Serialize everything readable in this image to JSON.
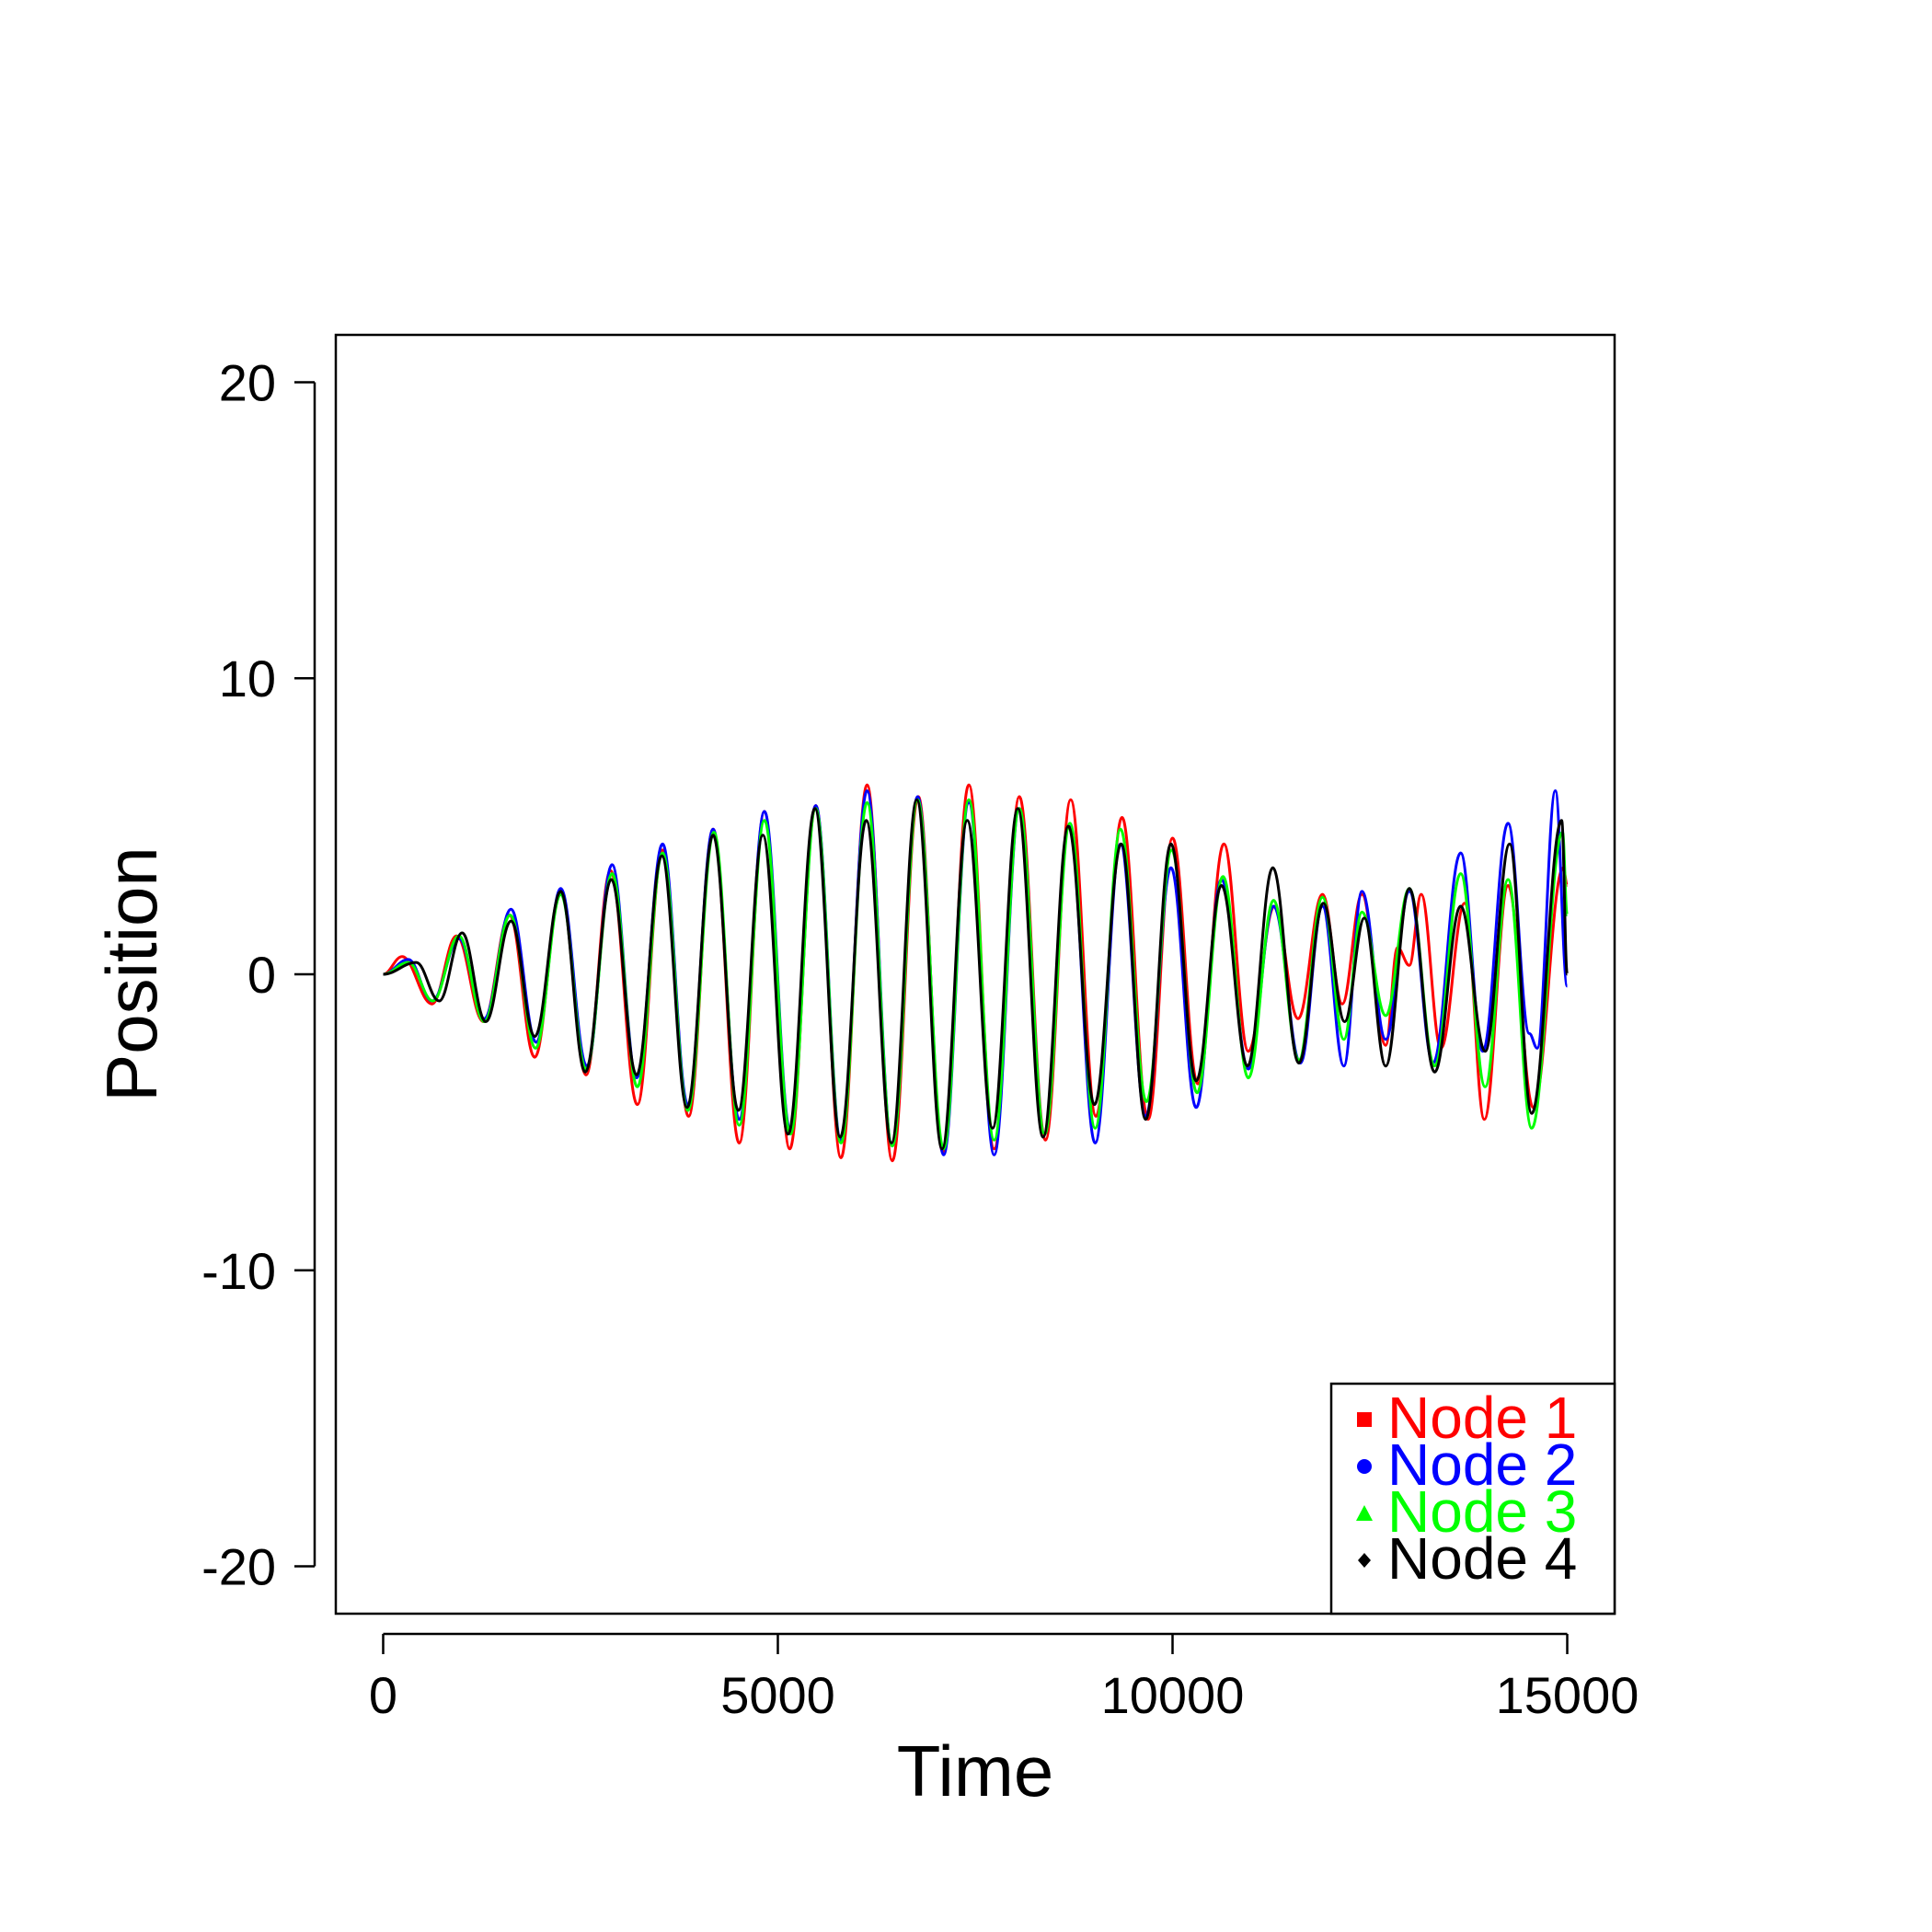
{
  "chart_data": {
    "type": "line",
    "title": "",
    "xlabel": "Time",
    "ylabel": "Position",
    "xlim": [
      -600,
      15600
    ],
    "ylim": [
      -21.6,
      21.6
    ],
    "xticks": [
      0,
      5000,
      10000,
      15000
    ],
    "yticks": [
      -20,
      -10,
      0,
      10,
      20
    ],
    "grid": false,
    "legend_position": "bottom-right",
    "series": [
      {
        "name": "Node 1",
        "color": "#ff0000",
        "marker": "square",
        "points": [
          [
            0,
            0
          ],
          [
            240,
            0.6
          ],
          [
            620,
            -1.0
          ],
          [
            930,
            1.3
          ],
          [
            1270,
            -1.6
          ],
          [
            1600,
            2.0
          ],
          [
            1920,
            -2.8
          ],
          [
            2250,
            2.8
          ],
          [
            2570,
            -3.4
          ],
          [
            2880,
            3.5
          ],
          [
            3220,
            -4.4
          ],
          [
            3540,
            4.2
          ],
          [
            3870,
            -4.8
          ],
          [
            4180,
            4.9
          ],
          [
            4510,
            -5.7
          ],
          [
            4830,
            5.5
          ],
          [
            5150,
            -5.9
          ],
          [
            5480,
            5.7
          ],
          [
            5800,
            -6.2
          ],
          [
            6130,
            6.4
          ],
          [
            6450,
            -6.3
          ],
          [
            6780,
            6.0
          ],
          [
            7090,
            -6.0
          ],
          [
            7420,
            6.4
          ],
          [
            7740,
            -5.9
          ],
          [
            8060,
            6.0
          ],
          [
            8390,
            -5.6
          ],
          [
            8710,
            5.9
          ],
          [
            9030,
            -4.8
          ],
          [
            9360,
            5.3
          ],
          [
            9690,
            -4.9
          ],
          [
            10000,
            4.6
          ],
          [
            10320,
            -3.7
          ],
          [
            10650,
            4.4
          ],
          [
            10960,
            -2.6
          ],
          [
            11290,
            2.3
          ],
          [
            11590,
            -1.5
          ],
          [
            11900,
            2.7
          ],
          [
            12150,
            -1.0
          ],
          [
            12400,
            2.7
          ],
          [
            12700,
            -2.4
          ],
          [
            12850,
            0.9
          ],
          [
            13000,
            0.3
          ],
          [
            13150,
            2.7
          ],
          [
            13400,
            -2.5
          ],
          [
            13700,
            2.4
          ],
          [
            13950,
            -4.9
          ],
          [
            14250,
            3.0
          ],
          [
            14570,
            -4.5
          ],
          [
            14950,
            3.6
          ],
          [
            15000,
            3.0
          ]
        ]
      },
      {
        "name": "Node 2",
        "color": "#0000ff",
        "marker": "circle",
        "points": [
          [
            0,
            0
          ],
          [
            320,
            0.5
          ],
          [
            620,
            -0.9
          ],
          [
            960,
            1.2
          ],
          [
            1280,
            -1.5
          ],
          [
            1620,
            2.2
          ],
          [
            1940,
            -2.3
          ],
          [
            2250,
            2.9
          ],
          [
            2580,
            -3.1
          ],
          [
            2900,
            3.7
          ],
          [
            3210,
            -3.5
          ],
          [
            3540,
            4.4
          ],
          [
            3860,
            -4.4
          ],
          [
            4180,
            4.9
          ],
          [
            4510,
            -4.9
          ],
          [
            4830,
            5.5
          ],
          [
            5160,
            -5.3
          ],
          [
            5480,
            5.7
          ],
          [
            5800,
            -5.6
          ],
          [
            6130,
            6.2
          ],
          [
            6450,
            -5.8
          ],
          [
            6770,
            6.0
          ],
          [
            7100,
            -6.1
          ],
          [
            7420,
            5.8
          ],
          [
            7740,
            -6.1
          ],
          [
            8060,
            5.6
          ],
          [
            8380,
            -5.4
          ],
          [
            8690,
            5.0
          ],
          [
            9020,
            -5.7
          ],
          [
            9340,
            4.4
          ],
          [
            9660,
            -4.8
          ],
          [
            9980,
            3.6
          ],
          [
            10300,
            -4.5
          ],
          [
            10620,
            3.2
          ],
          [
            10960,
            -3.2
          ],
          [
            11280,
            2.3
          ],
          [
            11620,
            -3.0
          ],
          [
            11900,
            2.3
          ],
          [
            12170,
            -3.1
          ],
          [
            12400,
            2.8
          ],
          [
            12700,
            -2.2
          ],
          [
            13000,
            2.8
          ],
          [
            13300,
            -3.0
          ],
          [
            13650,
            4.1
          ],
          [
            13930,
            -2.6
          ],
          [
            14250,
            5.1
          ],
          [
            14520,
            -2.0
          ],
          [
            14620,
            -2.5
          ],
          [
            14850,
            6.2
          ],
          [
            15000,
            -0.4
          ]
        ]
      },
      {
        "name": "Node 3",
        "color": "#00ff00",
        "marker": "triangle",
        "points": [
          [
            0,
            0
          ],
          [
            320,
            0.4
          ],
          [
            630,
            -0.9
          ],
          [
            960,
            1.3
          ],
          [
            1280,
            -1.6
          ],
          [
            1610,
            2.0
          ],
          [
            1930,
            -2.5
          ],
          [
            2250,
            2.7
          ],
          [
            2570,
            -3.2
          ],
          [
            2900,
            3.4
          ],
          [
            3220,
            -3.8
          ],
          [
            3540,
            4.1
          ],
          [
            3860,
            -4.6
          ],
          [
            4190,
            4.8
          ],
          [
            4510,
            -5.1
          ],
          [
            4830,
            5.2
          ],
          [
            5160,
            -5.4
          ],
          [
            5480,
            5.6
          ],
          [
            5800,
            -5.7
          ],
          [
            6130,
            5.8
          ],
          [
            6450,
            -5.8
          ],
          [
            6770,
            5.9
          ],
          [
            7100,
            -5.9
          ],
          [
            7420,
            5.9
          ],
          [
            7740,
            -5.6
          ],
          [
            8060,
            5.6
          ],
          [
            8380,
            -5.4
          ],
          [
            8700,
            5.1
          ],
          [
            9020,
            -5.2
          ],
          [
            9340,
            4.9
          ],
          [
            9670,
            -4.3
          ],
          [
            9990,
            4.2
          ],
          [
            10310,
            -4.0
          ],
          [
            10640,
            3.3
          ],
          [
            10960,
            -3.5
          ],
          [
            11280,
            2.5
          ],
          [
            11600,
            -2.9
          ],
          [
            11900,
            2.6
          ],
          [
            12170,
            -2.2
          ],
          [
            12400,
            2.1
          ],
          [
            12700,
            -1.4
          ],
          [
            13000,
            2.9
          ],
          [
            13320,
            -3.1
          ],
          [
            13650,
            3.4
          ],
          [
            13960,
            -3.8
          ],
          [
            14250,
            3.2
          ],
          [
            14550,
            -5.2
          ],
          [
            14940,
            4.8
          ],
          [
            15000,
            2.0
          ]
        ]
      },
      {
        "name": "Node 4",
        "color": "#000000",
        "marker": "diamond",
        "points": [
          [
            0,
            0
          ],
          [
            420,
            0.4
          ],
          [
            710,
            -0.9
          ],
          [
            1000,
            1.4
          ],
          [
            1300,
            -1.6
          ],
          [
            1620,
            1.8
          ],
          [
            1920,
            -2.1
          ],
          [
            2250,
            2.8
          ],
          [
            2560,
            -3.3
          ],
          [
            2890,
            3.2
          ],
          [
            3210,
            -3.4
          ],
          [
            3530,
            4.0
          ],
          [
            3850,
            -4.5
          ],
          [
            4180,
            4.7
          ],
          [
            4500,
            -4.6
          ],
          [
            4810,
            4.7
          ],
          [
            5130,
            -5.4
          ],
          [
            5470,
            5.6
          ],
          [
            5790,
            -5.5
          ],
          [
            6120,
            5.2
          ],
          [
            6440,
            -5.7
          ],
          [
            6760,
            5.9
          ],
          [
            7080,
            -5.9
          ],
          [
            7400,
            5.2
          ],
          [
            7720,
            -5.2
          ],
          [
            8040,
            5.6
          ],
          [
            8360,
            -5.5
          ],
          [
            8680,
            5.0
          ],
          [
            9010,
            -4.4
          ],
          [
            9350,
            4.4
          ],
          [
            9660,
            -4.9
          ],
          [
            9980,
            4.4
          ],
          [
            10300,
            -3.6
          ],
          [
            10620,
            3.0
          ],
          [
            10950,
            -3.1
          ],
          [
            11270,
            3.6
          ],
          [
            11600,
            -3.0
          ],
          [
            11910,
            2.4
          ],
          [
            12180,
            -1.6
          ],
          [
            12430,
            1.9
          ],
          [
            12700,
            -3.1
          ],
          [
            13000,
            2.9
          ],
          [
            13320,
            -3.3
          ],
          [
            13650,
            2.3
          ],
          [
            13960,
            -2.6
          ],
          [
            14270,
            4.4
          ],
          [
            14550,
            -4.7
          ],
          [
            14930,
            5.2
          ],
          [
            15000,
            0.0
          ]
        ]
      }
    ]
  }
}
